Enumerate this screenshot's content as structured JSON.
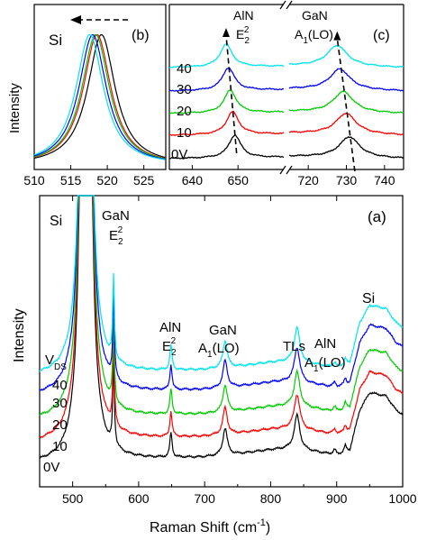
{
  "figure": {
    "series_colors": [
      "#000000",
      "#ff0000",
      "#00cc00",
      "#0000ff",
      "#00e5ee"
    ],
    "line_colors": [
      "#000000",
      "#ff0000",
      "#00cc00",
      "#0000ff",
      "#00e5ee"
    ],
    "dashed_line_color": "#000000"
  },
  "chart_data": [
    {
      "id": "a",
      "type": "line",
      "panel_label": "(a)",
      "xlabel": "Raman Shift (cm⁻¹)",
      "ylabel": "Intensity",
      "xlim": [
        450,
        1000
      ],
      "x_ticks": [
        500,
        600,
        700,
        800,
        900,
        1000
      ],
      "x_tick_labels": [
        "500",
        "600",
        "700",
        "800",
        "900",
        "1000"
      ],
      "y_ticks_shown": false,
      "grid": false,
      "legend": "none",
      "series_label_title": "V",
      "series_label_title_sub": "DS",
      "series_labels": [
        "0V",
        "10",
        "20",
        "30",
        "40"
      ],
      "annotations": [
        {
          "id": "si-left",
          "lines": [
            "Si"
          ]
        },
        {
          "id": "gan-e2",
          "lines": [
            "GaN",
            "E₂²"
          ]
        },
        {
          "id": "aln-e2",
          "lines": [
            "AlN",
            "E₂²"
          ]
        },
        {
          "id": "gan-a1lo",
          "lines": [
            "GaN",
            "A₁(LO)"
          ]
        },
        {
          "id": "tls",
          "lines": [
            "TLs"
          ]
        },
        {
          "id": "aln-a1lo",
          "lines": [
            "AlN",
            "A₁(LO)"
          ]
        },
        {
          "id": "si-right",
          "lines": [
            "Si"
          ]
        }
      ],
      "baseline_offsets": [
        0,
        1,
        2,
        3,
        4
      ],
      "baseline": [
        [
          450,
          0.0
        ],
        [
          480,
          0.01
        ],
        [
          500,
          0.03
        ],
        [
          600,
          0.04
        ],
        [
          700,
          0.06
        ],
        [
          750,
          0.09
        ],
        [
          800,
          0.13
        ],
        [
          830,
          0.14
        ],
        [
          870,
          0.11
        ],
        [
          900,
          0.08
        ],
        [
          920,
          0.13
        ],
        [
          935,
          0.5
        ],
        [
          950,
          0.66
        ],
        [
          975,
          0.63
        ],
        [
          990,
          0.5
        ],
        [
          1000,
          0.46
        ]
      ],
      "peaks": [
        {
          "x": 520,
          "height": 18.0,
          "width": 4.0
        },
        {
          "x": 562,
          "height": 0.75,
          "width": 1.5
        },
        {
          "x": 649,
          "height": 0.23,
          "width": 2.0
        },
        {
          "x": 731,
          "height": 0.25,
          "width": 4.0
        },
        {
          "x": 840,
          "height": 0.32,
          "width": 5.0
        }
      ],
      "small_peaks": [
        {
          "x": 573,
          "height": 0.0,
          "width": 2.0
        },
        {
          "x": 897,
          "height": 0.05,
          "width": 3.0
        },
        {
          "x": 913,
          "height": 0.06,
          "width": 2.0
        }
      ],
      "peak_deltas": [
        {
          "peak": 562,
          "heights": [
            0.0,
            0.0,
            0.0,
            0.0,
            0.0
          ],
          "dx": [
            0,
            0,
            0,
            0,
            0
          ]
        }
      ]
    },
    {
      "id": "b",
      "type": "line",
      "panel_label": "(b)",
      "xlabel": "",
      "ylabel": "Intensity",
      "xlim": [
        510,
        528
      ],
      "x_ticks": [
        510,
        515,
        520,
        525
      ],
      "x_tick_labels": [
        "510",
        "515",
        "520",
        "525"
      ],
      "y_ticks_shown": false,
      "grid": false,
      "legend": "none",
      "annotations": [
        {
          "id": "si",
          "lines": [
            "Si"
          ]
        }
      ],
      "peak_positions": [
        519.2,
        518.6,
        518.4,
        518.0,
        517.6
      ],
      "peak_width": 2.3
    },
    {
      "id": "c",
      "type": "line",
      "panel_label": "(c)",
      "xlabel": "",
      "ylabel": "",
      "broken_axis": true,
      "segments": [
        {
          "xlim": [
            635,
            660
          ],
          "x_ticks": [
            640,
            650
          ],
          "x_tick_labels": [
            "640",
            "650"
          ]
        },
        {
          "xlim": [
            715,
            745
          ],
          "x_ticks": [
            720,
            730,
            740
          ],
          "x_tick_labels": [
            "720",
            "730",
            "740"
          ]
        }
      ],
      "y_ticks_shown": false,
      "grid": false,
      "legend": "none",
      "series_labels": [
        "0V",
        "10",
        "20",
        "30",
        "40"
      ],
      "annotations": [
        {
          "id": "aln-e2",
          "lines": [
            "AlN",
            "E₂²"
          ]
        },
        {
          "id": "gan-a1lo",
          "lines": [
            "GaN",
            "A₁(LO)"
          ]
        }
      ],
      "aln_peak_positions": [
        649.3,
        648.8,
        648.3,
        647.9,
        647.4
      ],
      "gan_peak_positions": [
        730.8,
        729.9,
        729.2,
        728.3,
        727.6
      ]
    }
  ]
}
